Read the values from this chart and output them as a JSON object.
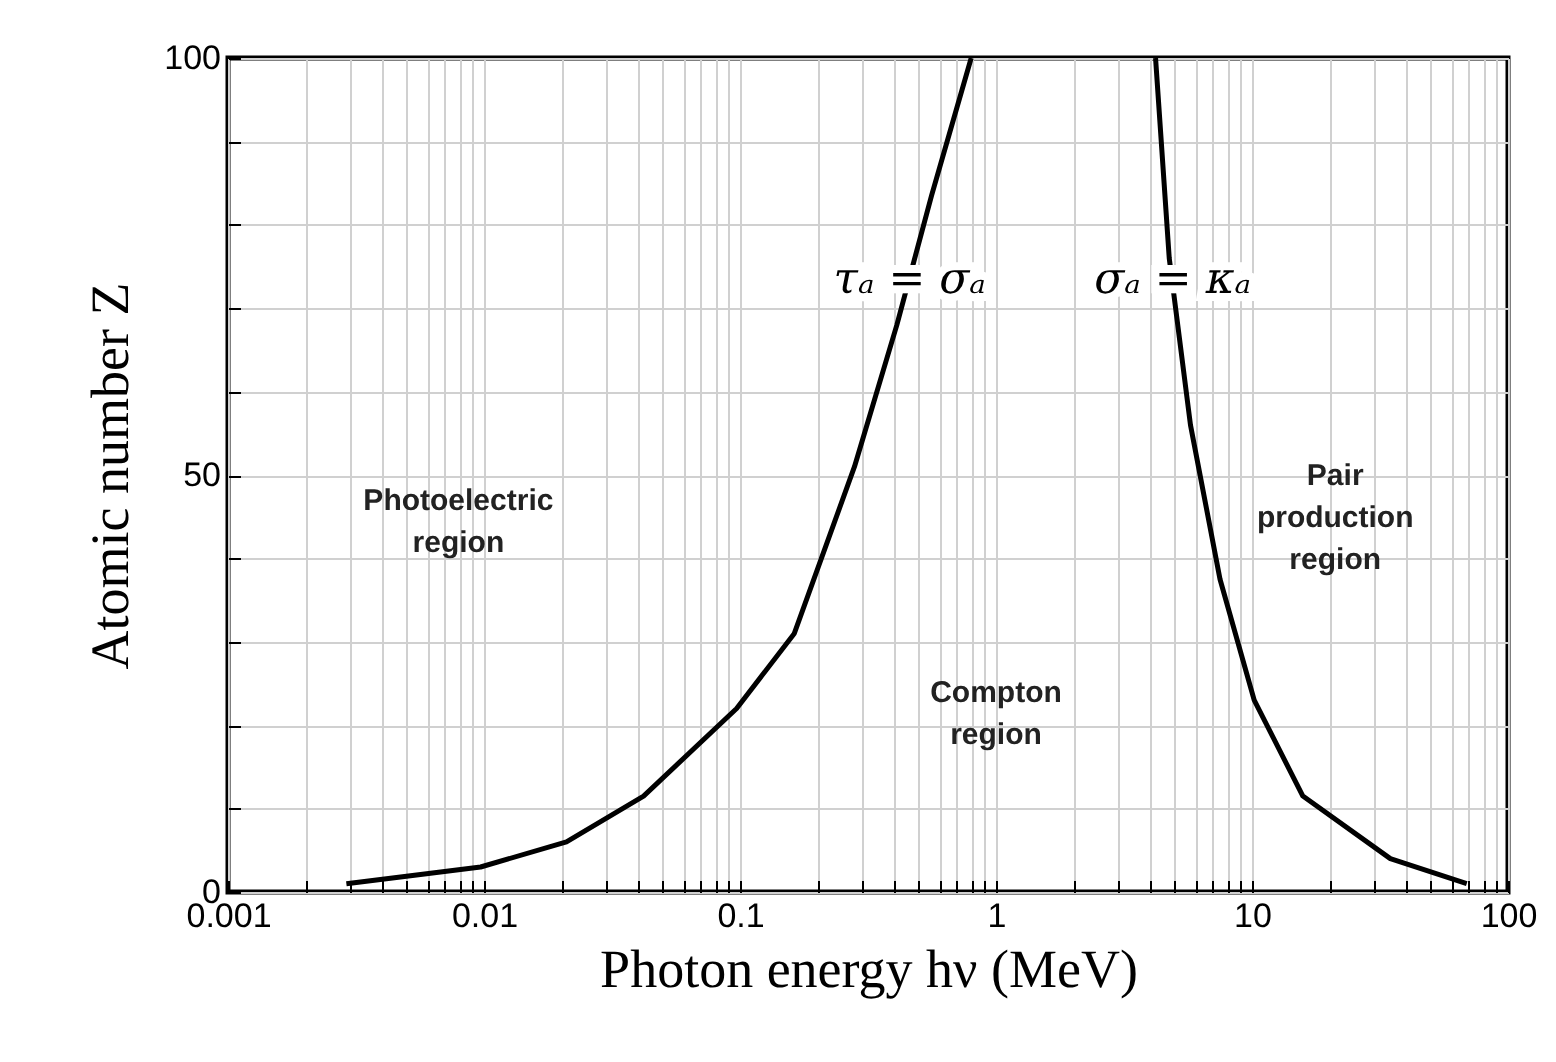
{
  "chart_data": {
    "type": "line",
    "xlabel": "Photon energy hν (MeV)",
    "ylabel": "Atomic number Z",
    "series": [
      {
        "color": "#000000",
        "x": [
          0.0029,
          0.0097,
          0.021,
          0.042,
          0.097,
          0.163,
          0.28,
          0.41,
          0.56,
          0.8
        ],
        "values": [
          1,
          3,
          6,
          11.5,
          22,
          31,
          51,
          68,
          83.5,
          100
        ]
      },
      {
        "color": "#000000",
        "x": [
          4.2,
          4.75,
          5.75,
          7.5,
          10.2,
          15.8,
          34.7,
          69
        ],
        "values": [
          100,
          76,
          56,
          37.5,
          23,
          11.5,
          4,
          1
        ]
      }
    ],
    "log": "x",
    "xlim": [
      0.001,
      100
    ],
    "ylim": [
      0,
      100
    ],
    "xticks": [
      0.001,
      {
        "value": 0.002,
        "label": null
      },
      {
        "value": 0.003,
        "label": null
      },
      {
        "value": 0.004,
        "label": null
      },
      {
        "value": 0.005,
        "label": null
      },
      {
        "value": 0.006,
        "label": null
      },
      {
        "value": 0.007,
        "label": null
      },
      {
        "value": 0.008,
        "label": null
      },
      {
        "value": 0.009,
        "label": null
      },
      0.01,
      {
        "value": 0.02,
        "label": null
      },
      {
        "value": 0.03,
        "label": null
      },
      {
        "value": 0.04,
        "label": null
      },
      {
        "value": 0.05,
        "label": null
      },
      {
        "value": 0.06,
        "label": null
      },
      {
        "value": 0.07,
        "label": null
      },
      {
        "value": 0.08,
        "label": null
      },
      {
        "value": 0.09,
        "label": null
      },
      0.1,
      {
        "value": 0.2,
        "label": null
      },
      {
        "value": 0.3,
        "label": null
      },
      {
        "value": 0.4,
        "label": null
      },
      {
        "value": 0.5,
        "label": null
      },
      {
        "value": 0.6,
        "label": null
      },
      {
        "value": 0.7,
        "label": null
      },
      {
        "value": 0.8,
        "label": null
      },
      {
        "value": 0.9,
        "label": null
      },
      1,
      {
        "value": 2,
        "label": null
      },
      {
        "value": 3,
        "label": null
      },
      {
        "value": 4,
        "label": null
      },
      {
        "value": 5,
        "label": null
      },
      {
        "value": 6,
        "label": null
      },
      {
        "value": 7,
        "label": null
      },
      {
        "value": 8,
        "label": null
      },
      {
        "value": 9,
        "label": null
      },
      10,
      {
        "value": 20,
        "label": null
      },
      {
        "value": 30,
        "label": null
      },
      {
        "value": 40,
        "label": null
      },
      {
        "value": 50,
        "label": null
      },
      {
        "value": 60,
        "label": null
      },
      {
        "value": 70,
        "label": null
      },
      {
        "value": 80,
        "label": null
      },
      {
        "value": 90,
        "label": null
      },
      100
    ],
    "yticks": [
      0,
      {
        "value": 10,
        "label": null
      },
      {
        "value": 20,
        "label": null
      },
      {
        "value": 30,
        "label": null
      },
      {
        "value": 40,
        "label": null
      },
      50,
      {
        "value": 60,
        "label": null
      },
      {
        "value": 70,
        "label": null
      },
      {
        "value": 80,
        "label": null
      },
      {
        "value": 90,
        "label": null
      },
      100
    ],
    "grid": true,
    "annotations": [
      {
        "text": "τₐ = σₐ",
        "x": 0.46,
        "y": 73.5
      },
      {
        "text": "σₐ = κₐ",
        "x": 4.9,
        "y": 73.5
      },
      "Photoelectric\nregion",
      "Compton\nregion",
      "Pair\nproduction\nregion"
    ]
  }
}
